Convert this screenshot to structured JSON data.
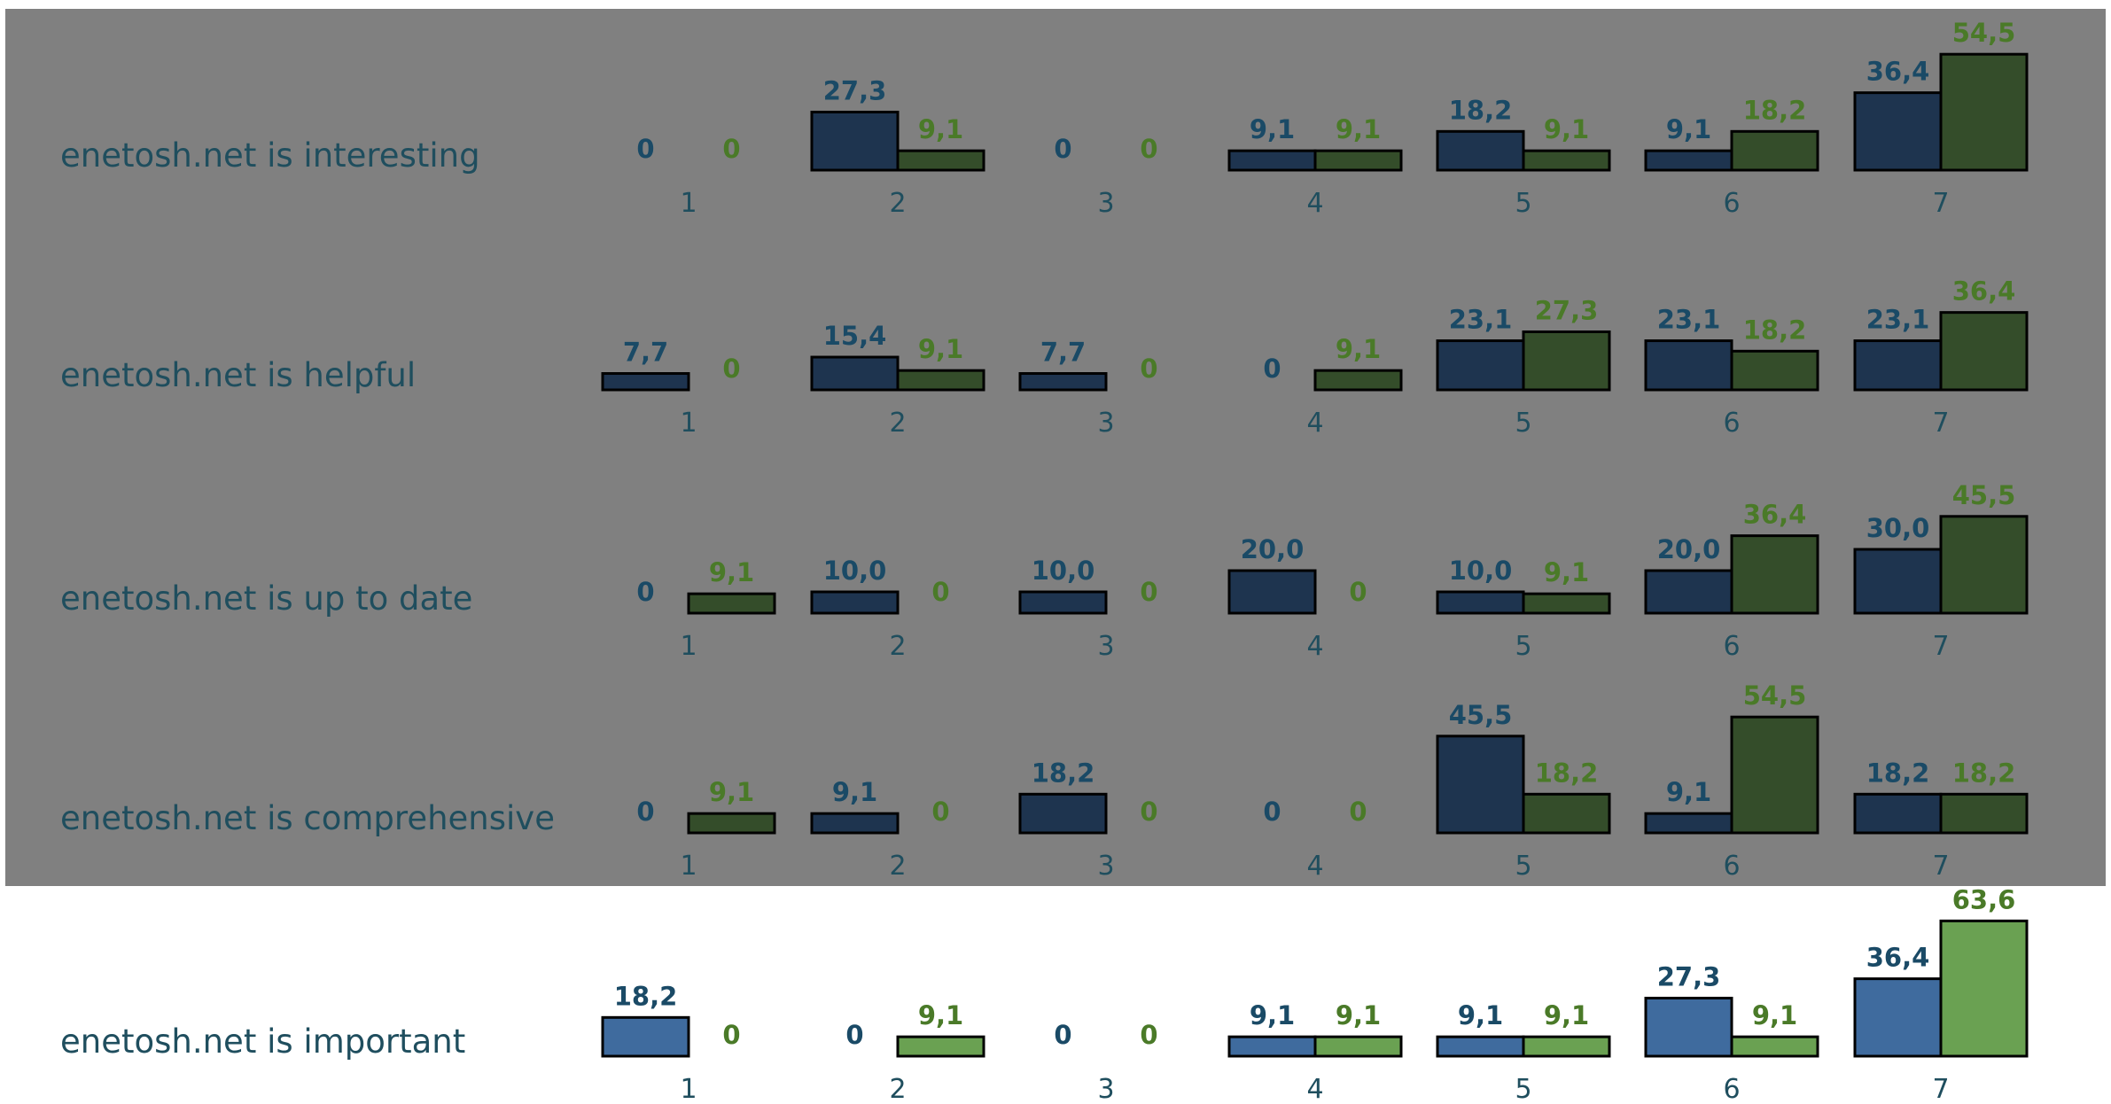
{
  "chart_data": {
    "type": "bar",
    "categories": [
      "1",
      "2",
      "3",
      "4",
      "5",
      "6",
      "7"
    ],
    "rows": [
      {
        "label": "enetosh.net is interesting",
        "highlighted": false,
        "series": [
          {
            "values": [
              0,
              27.3,
              0,
              9.1,
              18.2,
              9.1,
              36.4
            ],
            "labels": [
              "0",
              "27,3",
              "0",
              "9,1",
              "18,2",
              "9,1",
              "36,4"
            ]
          },
          {
            "values": [
              0,
              9.1,
              0,
              9.1,
              9.1,
              18.2,
              54.5
            ],
            "labels": [
              "0",
              "9,1",
              "0",
              "9,1",
              "9,1",
              "18,2",
              "54,5"
            ]
          }
        ]
      },
      {
        "label": "enetosh.net is helpful",
        "highlighted": false,
        "series": [
          {
            "values": [
              7.7,
              15.4,
              7.7,
              0,
              23.1,
              23.1,
              23.1
            ],
            "labels": [
              "7,7",
              "15,4",
              "7,7",
              "0",
              "23,1",
              "23,1",
              "23,1"
            ]
          },
          {
            "values": [
              0,
              9.1,
              0,
              9.1,
              27.3,
              18.2,
              36.4
            ],
            "labels": [
              "0",
              "9,1",
              "0",
              "9,1",
              "27,3",
              "18,2",
              "36,4"
            ]
          }
        ]
      },
      {
        "label": "enetosh.net is up to date",
        "highlighted": false,
        "series": [
          {
            "values": [
              0,
              10.0,
              10.0,
              20.0,
              10.0,
              20.0,
              30.0
            ],
            "labels": [
              "0",
              "10,0",
              "10,0",
              "20,0",
              "10,0",
              "20,0",
              "30,0"
            ]
          },
          {
            "values": [
              9.1,
              0,
              0,
              0,
              9.1,
              36.4,
              45.5
            ],
            "labels": [
              "9,1",
              "0",
              "0",
              "0",
              "9,1",
              "36,4",
              "45,5"
            ]
          }
        ]
      },
      {
        "label": "enetosh.net is comprehensive",
        "highlighted": false,
        "series": [
          {
            "values": [
              0,
              9.1,
              18.2,
              0,
              45.5,
              9.1,
              18.2
            ],
            "labels": [
              "0",
              "9,1",
              "18,2",
              "0",
              "45,5",
              "9,1",
              "18,2"
            ]
          },
          {
            "values": [
              9.1,
              0,
              0,
              0,
              18.2,
              54.5,
              18.2
            ],
            "labels": [
              "9,1",
              "0",
              "0",
              "0",
              "18,2",
              "54,5",
              "18,2"
            ]
          }
        ]
      },
      {
        "label": "enetosh.net is important",
        "highlighted": true,
        "series": [
          {
            "values": [
              18.2,
              0,
              0,
              9.1,
              9.1,
              27.3,
              36.4
            ],
            "labels": [
              "18,2",
              "0",
              "0",
              "9,1",
              "9,1",
              "27,3",
              "36,4"
            ]
          },
          {
            "values": [
              0,
              9.1,
              0,
              9.1,
              9.1,
              9.1,
              63.6
            ],
            "labels": [
              "0",
              "9,1",
              "0",
              "9,1",
              "9,1",
              "9,1",
              "63,6"
            ]
          }
        ]
      }
    ],
    "legend": "none",
    "grid": false,
    "colors": {
      "dimmed_overlay": "#808080",
      "series1_dimmed": "#1e344f",
      "series2_dimmed": "#344d2a",
      "series1": "#3f6b9e",
      "series2": "#6aa152",
      "series1_label": "#1a4a66",
      "series2_label": "#4a7a28",
      "row_label": "#1f4e5e",
      "tick_label": "#1f4e5e"
    }
  }
}
